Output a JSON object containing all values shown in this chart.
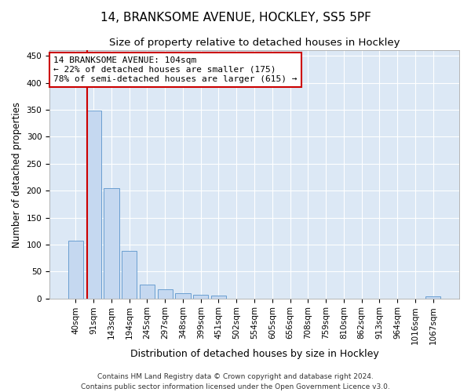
{
  "title": "14, BRANKSOME AVENUE, HOCKLEY, SS5 5PF",
  "subtitle": "Size of property relative to detached houses in Hockley",
  "xlabel": "Distribution of detached houses by size in Hockley",
  "ylabel": "Number of detached properties",
  "footer": "Contains HM Land Registry data © Crown copyright and database right 2024.\nContains public sector information licensed under the Open Government Licence v3.0.",
  "bar_labels": [
    "40sqm",
    "91sqm",
    "143sqm",
    "194sqm",
    "245sqm",
    "297sqm",
    "348sqm",
    "399sqm",
    "451sqm",
    "502sqm",
    "554sqm",
    "605sqm",
    "656sqm",
    "708sqm",
    "759sqm",
    "810sqm",
    "862sqm",
    "913sqm",
    "964sqm",
    "1016sqm",
    "1067sqm"
  ],
  "bar_values": [
    107,
    349,
    204,
    88,
    25,
    17,
    10,
    7,
    5,
    0,
    0,
    0,
    0,
    0,
    0,
    0,
    0,
    0,
    0,
    0,
    4
  ],
  "bar_color": "#c5d8f0",
  "bar_edge_color": "#6a9fd0",
  "background_color": "#dce8f5",
  "grid_color": "#ffffff",
  "annotation_box_text": "14 BRANKSOME AVENUE: 104sqm\n← 22% of detached houses are smaller (175)\n78% of semi-detached houses are larger (615) →",
  "annotation_box_edgecolor": "#cc0000",
  "red_line_x": 0.6,
  "ylim": [
    0,
    460
  ],
  "yticks": [
    0,
    50,
    100,
    150,
    200,
    250,
    300,
    350,
    400,
    450
  ],
  "title_fontsize": 11,
  "subtitle_fontsize": 9.5,
  "xlabel_fontsize": 9,
  "ylabel_fontsize": 8.5,
  "tick_fontsize": 7.5,
  "annot_fontsize": 8,
  "footer_fontsize": 6.5
}
